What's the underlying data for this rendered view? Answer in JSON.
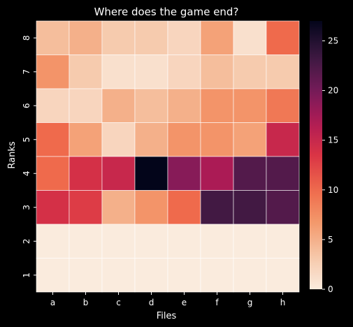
{
  "chart_data": {
    "type": "heatmap",
    "title": "Where does the game end?",
    "xlabel": "Files",
    "ylabel": "Ranks",
    "x_categories": [
      "a",
      "b",
      "c",
      "d",
      "e",
      "f",
      "g",
      "h"
    ],
    "y_categories": [
      "8",
      "7",
      "6",
      "5",
      "4",
      "3",
      "2",
      "1"
    ],
    "values": [
      [
        4,
        5,
        3,
        3,
        2,
        6,
        1,
        10
      ],
      [
        7,
        3,
        1,
        1,
        2,
        4,
        3,
        3
      ],
      [
        2,
        2,
        5,
        4,
        5,
        7,
        7,
        9
      ],
      [
        10,
        6,
        2,
        5,
        7,
        7,
        6,
        15
      ],
      [
        10,
        14,
        15,
        27,
        19,
        17,
        22,
        22
      ],
      [
        14,
        13,
        5,
        7,
        10,
        23,
        23,
        22
      ],
      [
        0,
        0,
        0,
        0,
        0,
        0,
        0,
        0
      ],
      [
        0,
        0,
        0,
        0,
        0,
        0,
        0,
        0
      ]
    ],
    "colorbar": {
      "min": 0,
      "max": 27,
      "ticks": [
        0,
        5,
        10,
        15,
        20,
        25
      ],
      "colormap": "rocket_r"
    },
    "grid_lines": true,
    "background": "#000000"
  }
}
